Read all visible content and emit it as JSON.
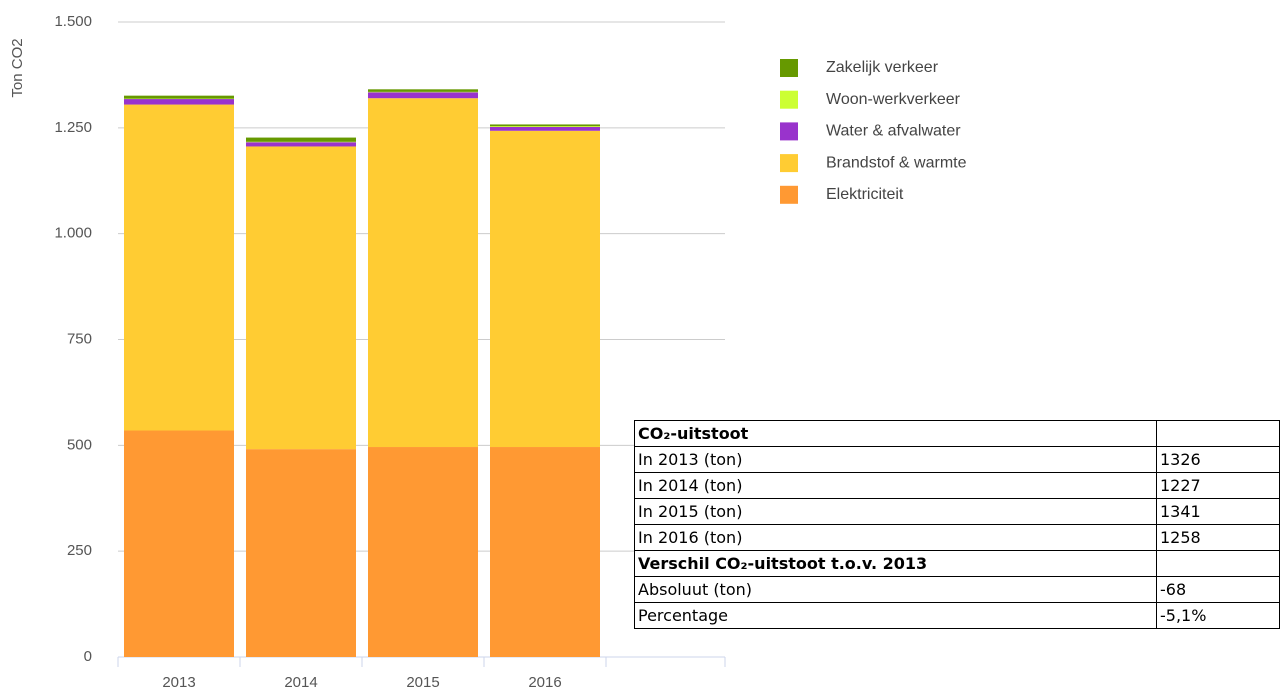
{
  "chart_data": {
    "type": "stacked_bar",
    "y_label": "Ton CO2",
    "categories": [
      "2013",
      "2014",
      "2015",
      "2016"
    ],
    "series": [
      {
        "name": "Elektriciteit",
        "color": "#ff9933",
        "values": [
          535,
          491,
          496,
          496
        ]
      },
      {
        "name": "Brandstof & warmte",
        "color": "#ffcc33",
        "values": [
          770,
          715,
          824,
          747
        ]
      },
      {
        "name": "Water & afvalwater",
        "color": "#9933cc",
        "values": [
          13,
          10,
          14,
          9
        ]
      },
      {
        "name": "Woon-werkverkeer",
        "color": "#ccff33",
        "values": [
          1,
          1,
          1,
          2
        ]
      },
      {
        "name": "Zakelijk verkeer",
        "color": "#669900",
        "values": [
          7,
          10,
          6,
          4
        ]
      }
    ],
    "ylim": [
      0,
      1500
    ],
    "yticks": [
      0,
      250,
      500,
      750,
      {
        "value": 1000,
        "label": "1.000"
      },
      {
        "value": 1250,
        "label": "1.250"
      },
      {
        "value": 1500,
        "label": "1.500"
      }
    ],
    "grid": true,
    "legend": "right"
  },
  "table": {
    "rows": [
      {
        "label": "CO₂-uitstoot"
      },
      {
        "label": "In 2013 (ton)",
        "value": 1326
      },
      {
        "label": "In 2014 (ton)",
        "value": 1227
      },
      {
        "label": "In 2015 (ton)",
        "value": 1341
      },
      {
        "label": "In 2016 (ton)",
        "value": 1258
      },
      {
        "label": "Verschil CO₂-uitstoot t.o.v. 2013"
      },
      {
        "label": "Absoluut (ton)",
        "value": -68
      },
      {
        "label": "Percentage",
        "value": "-5,1%"
      }
    ]
  }
}
